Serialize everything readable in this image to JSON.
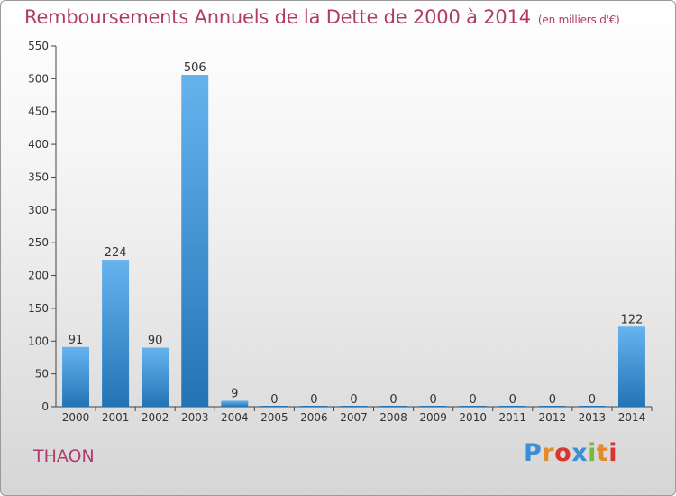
{
  "title": {
    "main": "Remboursements Annuels de la Dette de 2000 à 2014",
    "unit": "(en milliers d'€)"
  },
  "commune": "THAON",
  "logo": {
    "letters": [
      {
        "char": "P",
        "color": "#3a8fd6"
      },
      {
        "char": "r",
        "color": "#e38b2c"
      },
      {
        "char": "o",
        "color": "#d9362f"
      },
      {
        "char": "x",
        "color": "#3a8fd6"
      },
      {
        "char": "i",
        "color": "#7ab841"
      },
      {
        "char": "t",
        "color": "#e38b2c"
      },
      {
        "char": "i",
        "color": "#d9362f"
      }
    ]
  },
  "colors": {
    "bar_light": "#66b3ee",
    "bar_dark": "#2374b5",
    "title": "#b03a6a"
  },
  "chart_data": {
    "type": "bar",
    "categories": [
      "2000",
      "2001",
      "2002",
      "2003",
      "2004",
      "2005",
      "2006",
      "2007",
      "2008",
      "2009",
      "2010",
      "2011",
      "2012",
      "2013",
      "2014"
    ],
    "values": [
      91,
      224,
      90,
      506,
      9,
      0,
      0,
      0,
      0,
      0,
      0,
      0,
      0,
      0,
      122
    ],
    "labels": [
      "91",
      "224",
      "90",
      "506",
      "9",
      "0",
      "0",
      "0",
      "0",
      "0",
      "0",
      "0",
      "0",
      "0",
      "122"
    ],
    "title": "Remboursements Annuels de la Dette de 2000 à 2014",
    "ylim": [
      0,
      550
    ],
    "yticks": [
      0,
      50,
      100,
      150,
      200,
      250,
      300,
      350,
      400,
      450,
      500,
      550
    ],
    "grid": false,
    "legend": "none"
  }
}
